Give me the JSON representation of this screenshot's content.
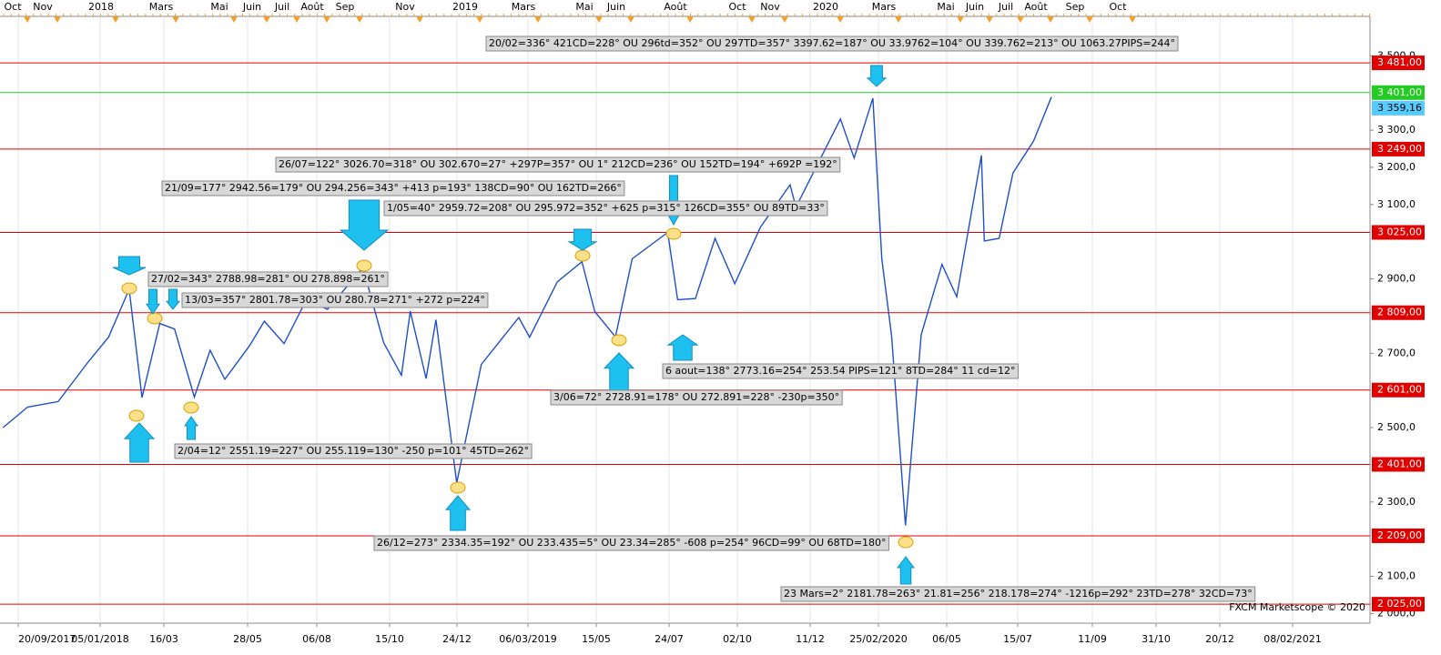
{
  "chart_data": {
    "type": "line",
    "x": [
      "2017-09-20",
      "2017-10-15",
      "2017-11-15",
      "2017-12-15",
      "2018-01-05",
      "2018-01-26",
      "2018-02-08",
      "2018-02-26",
      "2018-03-13",
      "2018-04-02",
      "2018-04-18",
      "2018-05-03",
      "2018-05-28",
      "2018-06-12",
      "2018-07-02",
      "2018-07-25",
      "2018-08-15",
      "2018-09-20",
      "2018-10-11",
      "2018-10-29",
      "2018-11-07",
      "2018-11-23",
      "2018-12-03",
      "2018-12-24",
      "2019-01-18",
      "2019-02-25",
      "2019-03-08",
      "2019-04-05",
      "2019-04-30",
      "2019-05-13",
      "2019-06-03",
      "2019-06-20",
      "2019-07-26",
      "2019-08-05",
      "2019-08-23",
      "2019-09-12",
      "2019-10-02",
      "2019-10-28",
      "2019-11-27",
      "2019-12-03",
      "2020-01-17",
      "2020-01-31",
      "2020-02-19",
      "2020-02-28",
      "2020-03-09",
      "2020-03-23",
      "2020-04-08",
      "2020-04-29",
      "2020-05-14",
      "2020-06-08",
      "2020-06-11",
      "2020-06-26",
      "2020-07-10",
      "2020-07-31",
      "2020-08-18"
    ],
    "values": [
      2500,
      2555,
      2570,
      2675,
      2743,
      2872,
      2581,
      2780,
      2765,
      2582,
      2708,
      2630,
      2720,
      2786,
      2726,
      2846,
      2818,
      2930,
      2728,
      2641,
      2813,
      2632,
      2790,
      2351,
      2670,
      2796,
      2743,
      2892,
      2946,
      2812,
      2744,
      2954,
      3025,
      2844,
      2847,
      3009,
      2887,
      3039,
      3153,
      3093,
      3330,
      3225,
      3386,
      2954,
      2746,
      2237,
      2750,
      2939,
      2852,
      3232,
      3002,
      3009,
      3185,
      3271,
      3389
    ],
    "color": "#1f4fc8",
    "xlim": [
      "2017-09-17",
      "2021-07-07"
    ],
    "ylim": [
      1974,
      3606
    ],
    "yticks": [
      {
        "value": 2000,
        "label": "2 000,0"
      },
      {
        "value": 2100,
        "label": "2 100,0"
      },
      {
        "value": 2300,
        "label": "2 300,0"
      },
      {
        "value": 2500,
        "label": "2 500,0"
      },
      {
        "value": 2700,
        "label": "2 700,0"
      },
      {
        "value": 2900,
        "label": "2 900,0"
      },
      {
        "value": 3100,
        "label": "3 100,0"
      },
      {
        "value": 3200,
        "label": "3 200,0"
      },
      {
        "value": 3300,
        "label": "3 300,0"
      },
      {
        "value": 3500,
        "label": "3 500,0"
      }
    ],
    "levels": [
      {
        "value": 3481,
        "label": "3 481,00",
        "color": "#e00000"
      },
      {
        "value": 3401,
        "label": "3 401,00",
        "color": "#22cc22"
      },
      {
        "value": 3249,
        "label": "3 249,00",
        "color": "#e00000"
      },
      {
        "value": 3025,
        "label": "3 025,00",
        "color": "#e00000"
      },
      {
        "value": 2809,
        "label": "2 809,00",
        "color": "#e00000"
      },
      {
        "value": 2601,
        "label": "2 601,00",
        "color": "#e00000"
      },
      {
        "value": 2401,
        "label": "2 401,00",
        "color": "#e00000"
      },
      {
        "value": 2209,
        "label": "2 209,00",
        "color": "#e00000"
      },
      {
        "value": 2025,
        "label": "2 025,00",
        "color": "#e00000"
      }
    ],
    "last_price": {
      "value": 3359.16,
      "label": "3 359,16",
      "color": "#55ccff"
    },
    "top_labels": [
      "Oct",
      "Nov",
      "2018",
      "Mars",
      "Mai",
      "Juin",
      "Juil",
      "Août",
      "Sep",
      "Nov",
      "2019",
      "Mars",
      "Mai",
      "Juin",
      "Août",
      "Oct",
      "Nov",
      "2020",
      "Mars",
      "Mai",
      "Juin",
      "Juil",
      "Août",
      "Sep",
      "Oct"
    ],
    "bottom_labels": [
      "20/09/2017",
      "05/01/2018",
      "16/03",
      "28/05",
      "06/08",
      "15/10",
      "24/12",
      "06/03/2019",
      "15/05",
      "24/07",
      "02/10",
      "11/12",
      "25/02/2020",
      "06/05",
      "15/07",
      "11/09",
      "31/10",
      "20/12",
      "08/02/2021"
    ],
    "annotations": [
      "20/02=336° 421CD=228° OU 296td=352° OU 297TD=357° 3397.62=187° OU 33.9762=104° OU 339.762=213° OU 1063.27PIPS=244°",
      "26/07=122° 3026.70=318° OU 302.670=27° +297P=357° OU 1° 212CD=236° OU 152TD=194° +692P =192°",
      "21/09=177° 2942.56=179° OU 294.256=343° +413 p=193° 138CD=90° OU 162TD=266°",
      "1/05=40° 2959.72=208° OU 295.972=352° +625 p=315° 126CD=355° OU 89TD=33°",
      "27/02=343° 2788.98=281° OU 278.898=261°",
      "13/03=357° 2801.78=303° OU 280.78=271° +272 p=224°",
      "6 aout=138° 2773.16=254° 253.54 PIPS=121° 8TD=284° 11 cd=12°",
      "3/06=72° 2728.91=178° OU 272.891=228° -230p=350°",
      "2/04=12° 2551.19=227° OU 255.119=130° -250 p=101° 45TD=262°",
      "26/12=273° 2334.35=192° OU 233.435=5° OU 23.34=285° -608 p=254° 96CD=99° OU 68TD=180°",
      "23 Mars=2° 2181.78=263° 21.81=256° 218.178=274° -1216p=292° 23TD=278° 32CD=73°"
    ],
    "watermark": "FXCM Marketscope © 2020"
  }
}
